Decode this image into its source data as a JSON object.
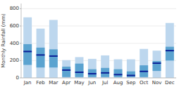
{
  "chart_data": {
    "type": "bar",
    "categories": [
      "Jan",
      "Feb",
      "Mar",
      "Apr",
      "May",
      "Jun",
      "Jul",
      "Aug",
      "Sep",
      "Oct",
      "Nov",
      "Dec"
    ],
    "series": [
      {
        "type": "range",
        "color": "#bdd7ee",
        "low": [
          0,
          0,
          0,
          0,
          0,
          0,
          0,
          0,
          0,
          0,
          0,
          0
        ],
        "high": [
          700,
          570,
          670,
          205,
          240,
          220,
          260,
          215,
          215,
          335,
          315,
          635
        ]
      },
      {
        "type": "range",
        "color": "#5ba3d0",
        "low": [
          150,
          120,
          120,
          10,
          10,
          10,
          10,
          10,
          10,
          10,
          80,
          200
        ],
        "high": [
          390,
          350,
          330,
          130,
          165,
          100,
          115,
          100,
          75,
          145,
          195,
          360
        ]
      },
      {
        "type": "median",
        "color": "#0a1f96",
        "values": [
          305,
          265,
          252,
          90,
          65,
          48,
          58,
          38,
          28,
          75,
          170,
          315
        ]
      }
    ],
    "ylim": [
      0,
      860
    ],
    "yticks": [
      0,
      200,
      400,
      600,
      800
    ],
    "ylabel": "Monthly Rainfall (mm)",
    "grid": true
  }
}
